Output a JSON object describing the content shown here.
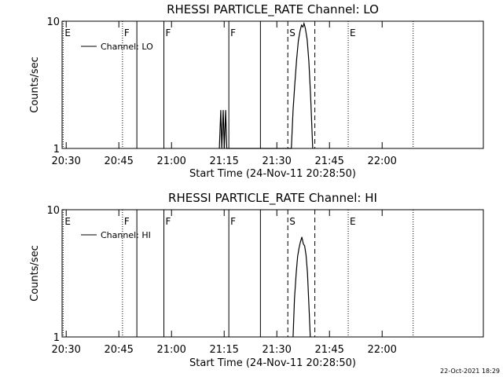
{
  "footer": {
    "timestamp": "22-Oct-2021 18:29"
  },
  "chart_data": [
    {
      "type": "line",
      "title": "RHESSI PARTICLE_RATE Channel: LO",
      "xlabel": "Start Time (24-Nov-11 20:28:50)",
      "ylabel": "Counts/sec",
      "x_unit": "minutes after 20:28:50",
      "xlim": [
        0,
        120
      ],
      "ylim": [
        1,
        10
      ],
      "y_scale": "log",
      "grid": false,
      "legend_position": "top-left",
      "x_ticks": [
        {
          "value": 1.17,
          "label": "20:30"
        },
        {
          "value": 16.17,
          "label": "20:45"
        },
        {
          "value": 31.17,
          "label": "21:00"
        },
        {
          "value": 46.17,
          "label": "21:15"
        },
        {
          "value": 61.17,
          "label": "21:30"
        },
        {
          "value": 76.17,
          "label": "21:45"
        },
        {
          "value": 91.17,
          "label": "22:00"
        }
      ],
      "y_ticks": [
        {
          "value": 1,
          "label": "1"
        },
        {
          "value": 10,
          "label": "10"
        }
      ],
      "markers": [
        {
          "x": 0.3,
          "label": "E",
          "style": "dotted"
        },
        {
          "x": 17.2,
          "label": "F",
          "style": "dotted"
        },
        {
          "x": 21.3,
          "label": "",
          "style": "solid"
        },
        {
          "x": 29.0,
          "label": "F",
          "style": "solid"
        },
        {
          "x": 47.5,
          "label": "F",
          "style": "solid"
        },
        {
          "x": 56.5,
          "label": "",
          "style": "solid"
        },
        {
          "x": 64.3,
          "label": "S",
          "style": "dashed"
        },
        {
          "x": 72.0,
          "label": "",
          "style": "dashed"
        },
        {
          "x": 81.5,
          "label": "E",
          "style": "dotted"
        },
        {
          "x": 100.0,
          "label": "",
          "style": "dotted"
        }
      ],
      "series": [
        {
          "name": "Channel: LO",
          "points": [
            [
              44.8,
              1
            ],
            [
              45.2,
              2
            ],
            [
              45.5,
              1
            ],
            [
              45.9,
              2
            ],
            [
              46.2,
              1
            ],
            [
              46.6,
              2
            ],
            [
              46.9,
              1
            ],
            [
              65.3,
              1
            ],
            [
              65.8,
              2
            ],
            [
              66.3,
              3.2
            ],
            [
              66.8,
              5
            ],
            [
              67.3,
              7
            ],
            [
              67.8,
              8.4
            ],
            [
              68.2,
              9.3
            ],
            [
              68.6,
              9
            ],
            [
              68.9,
              9.6
            ],
            [
              69.3,
              8.8
            ],
            [
              69.8,
              7.2
            ],
            [
              70.3,
              4.8
            ],
            [
              70.8,
              2.6
            ],
            [
              71.4,
              1
            ]
          ]
        }
      ]
    },
    {
      "type": "line",
      "title": "RHESSI PARTICLE_RATE Channel: HI",
      "xlabel": "Start Time (24-Nov-11 20:28:50)",
      "ylabel": "Counts/sec",
      "x_unit": "minutes after 20:28:50",
      "xlim": [
        0,
        120
      ],
      "ylim": [
        1,
        10
      ],
      "y_scale": "log",
      "grid": false,
      "legend_position": "top-left",
      "x_ticks": [
        {
          "value": 1.17,
          "label": "20:30"
        },
        {
          "value": 16.17,
          "label": "20:45"
        },
        {
          "value": 31.17,
          "label": "21:00"
        },
        {
          "value": 46.17,
          "label": "21:15"
        },
        {
          "value": 61.17,
          "label": "21:30"
        },
        {
          "value": 76.17,
          "label": "21:45"
        },
        {
          "value": 91.17,
          "label": "22:00"
        }
      ],
      "y_ticks": [
        {
          "value": 1,
          "label": "1"
        },
        {
          "value": 10,
          "label": "10"
        }
      ],
      "markers": [
        {
          "x": 0.3,
          "label": "E",
          "style": "dotted"
        },
        {
          "x": 17.2,
          "label": "F",
          "style": "dotted"
        },
        {
          "x": 21.3,
          "label": "",
          "style": "solid"
        },
        {
          "x": 29.0,
          "label": "F",
          "style": "solid"
        },
        {
          "x": 47.5,
          "label": "F",
          "style": "solid"
        },
        {
          "x": 56.5,
          "label": "",
          "style": "solid"
        },
        {
          "x": 64.3,
          "label": "S",
          "style": "dashed"
        },
        {
          "x": 72.0,
          "label": "",
          "style": "dashed"
        },
        {
          "x": 81.5,
          "label": "E",
          "style": "dotted"
        },
        {
          "x": 100.0,
          "label": "",
          "style": "dotted"
        }
      ],
      "series": [
        {
          "name": "Channel: HI",
          "points": [
            [
              65.8,
              1
            ],
            [
              66.2,
              2
            ],
            [
              66.7,
              3.2
            ],
            [
              67.1,
              4.3
            ],
            [
              67.5,
              5
            ],
            [
              67.9,
              5.6
            ],
            [
              68.3,
              6.1
            ],
            [
              68.7,
              5.4
            ],
            [
              69.1,
              5.2
            ],
            [
              69.5,
              4.4
            ],
            [
              69.9,
              3.2
            ],
            [
              70.3,
              1.8
            ],
            [
              70.7,
              1
            ]
          ]
        }
      ]
    }
  ]
}
